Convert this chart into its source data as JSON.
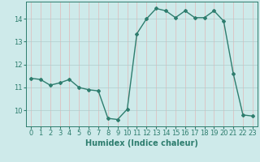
{
  "x": [
    0,
    1,
    2,
    3,
    4,
    5,
    6,
    7,
    8,
    9,
    10,
    11,
    12,
    13,
    14,
    15,
    16,
    17,
    18,
    19,
    20,
    21,
    22,
    23
  ],
  "y": [
    11.4,
    11.35,
    11.1,
    11.2,
    11.35,
    11.0,
    10.9,
    10.85,
    9.65,
    9.6,
    10.05,
    13.35,
    14.0,
    14.45,
    14.35,
    14.05,
    14.35,
    14.05,
    14.05,
    14.35,
    13.9,
    11.6,
    9.8,
    9.75
  ],
  "line_color": "#2e7d6e",
  "marker": "D",
  "marker_size": 2,
  "bg_color": "#ceeaea",
  "grid_hcolor": "#b0cccc",
  "grid_vcolor": "#e0b8b8",
  "xlabel": "Humidex (Indice chaleur)",
  "xlim": [
    -0.5,
    23.5
  ],
  "ylim": [
    9.3,
    14.75
  ],
  "yticks": [
    10,
    11,
    12,
    13,
    14
  ],
  "xticks": [
    0,
    1,
    2,
    3,
    4,
    5,
    6,
    7,
    8,
    9,
    10,
    11,
    12,
    13,
    14,
    15,
    16,
    17,
    18,
    19,
    20,
    21,
    22,
    23
  ],
  "tick_fontsize": 6,
  "xlabel_fontsize": 7,
  "line_width": 1.0
}
